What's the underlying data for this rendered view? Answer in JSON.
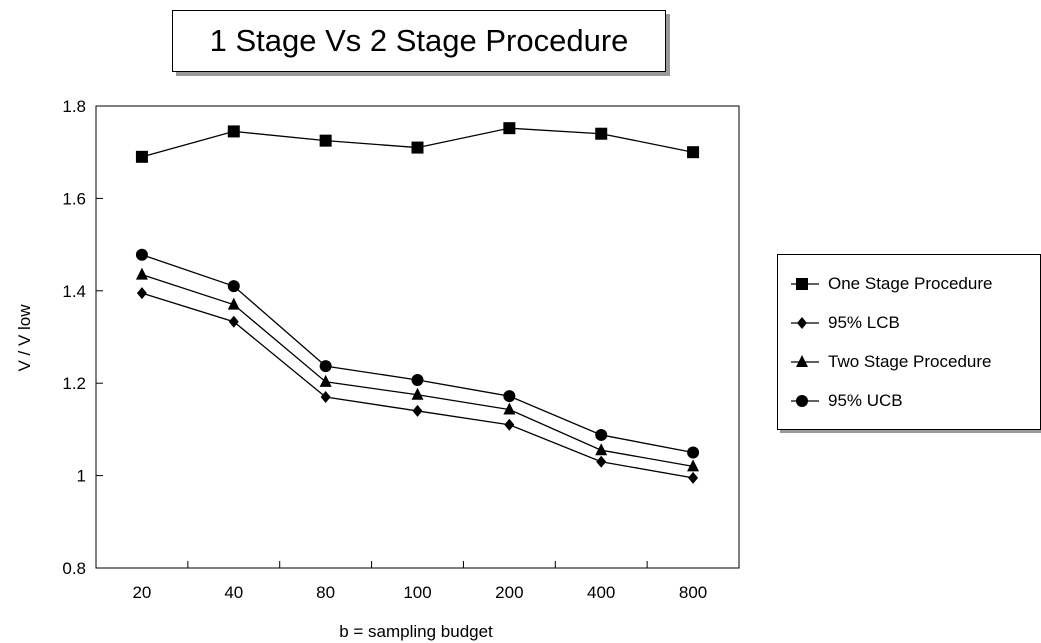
{
  "chart_data": {
    "type": "line",
    "title": "1 Stage Vs 2 Stage Procedure",
    "xlabel": "b = sampling budget",
    "ylabel": "V / V low",
    "categories": [
      "20",
      "40",
      "80",
      "100",
      "200",
      "400",
      "800"
    ],
    "y_ticks": [
      "0.8",
      "1",
      "1.2",
      "1.4",
      "1.6",
      "1.8"
    ],
    "ylim": [
      0.8,
      1.8
    ],
    "grid": false,
    "legend_position": "right",
    "series": [
      {
        "name": "One Stage Procedure",
        "marker": "square",
        "values": [
          1.69,
          1.745,
          1.725,
          1.71,
          1.752,
          1.74,
          1.7
        ]
      },
      {
        "name": "95% LCB",
        "marker": "diamond",
        "values": [
          1.395,
          1.333,
          1.17,
          1.14,
          1.11,
          1.03,
          0.995
        ]
      },
      {
        "name": "Two Stage Procedure",
        "marker": "triangle",
        "values": [
          1.435,
          1.37,
          1.203,
          1.175,
          1.143,
          1.055,
          1.02
        ]
      },
      {
        "name": "95% UCB",
        "marker": "circle",
        "values": [
          1.478,
          1.41,
          1.237,
          1.207,
          1.172,
          1.088,
          1.05
        ]
      }
    ]
  }
}
